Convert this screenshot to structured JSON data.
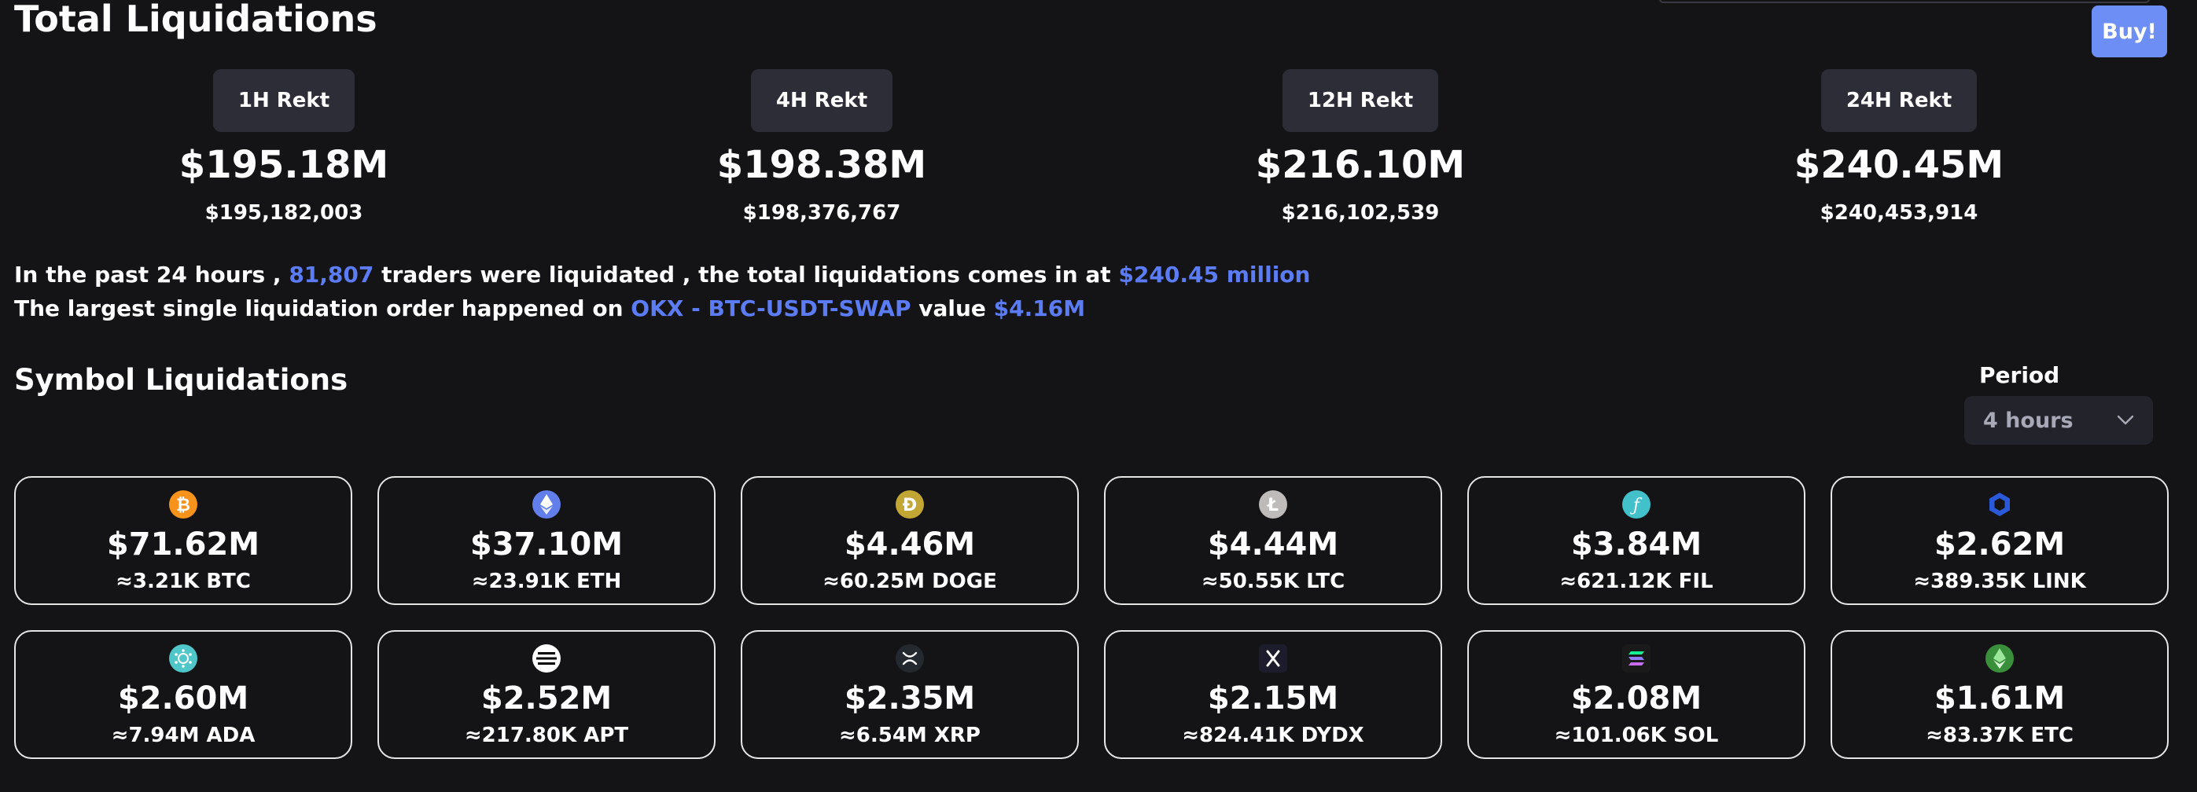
{
  "header": {
    "title": "Total Liquidations",
    "buy_label": "Buy!"
  },
  "rekt": [
    {
      "label": "1H Rekt",
      "short": "$195.18M",
      "full": "$195,182,003"
    },
    {
      "label": "4H Rekt",
      "short": "$198.38M",
      "full": "$198,376,767"
    },
    {
      "label": "12H Rekt",
      "short": "$216.10M",
      "full": "$216,102,539"
    },
    {
      "label": "24H Rekt",
      "short": "$240.45M",
      "full": "$240,453,914"
    }
  ],
  "summary": {
    "line1_a": "In the past 24 hours , ",
    "traders": "81,807",
    "line1_b": " traders were liquidated , the total liquidations comes in at ",
    "total": "$240.45 million",
    "line2_a": "The largest single liquidation order happened on ",
    "order": "OKX - BTC-USDT-SWAP",
    "line2_b": " value ",
    "order_value": "$4.16M"
  },
  "symbols": {
    "title": "Symbol Liquidations",
    "period_label": "Period",
    "period_value": "4 hours",
    "cards": [
      {
        "value": "$71.62M",
        "amount": "≈3.21K BTC",
        "icon": "bitcoin-icon",
        "color": "#f7931a"
      },
      {
        "value": "$37.10M",
        "amount": "≈23.91K ETH",
        "icon": "ethereum-icon",
        "color": "#627eea"
      },
      {
        "value": "$4.46M",
        "amount": "≈60.25M DOGE",
        "icon": "dogecoin-icon",
        "color": "#c2a633"
      },
      {
        "value": "$4.44M",
        "amount": "≈50.55K LTC",
        "icon": "litecoin-icon",
        "color": "#bfbbbb"
      },
      {
        "value": "$3.84M",
        "amount": "≈621.12K FIL",
        "icon": "filecoin-icon",
        "color": "#42c1ca"
      },
      {
        "value": "$2.62M",
        "amount": "≈389.35K LINK",
        "icon": "chainlink-icon",
        "color": "#2a5ada"
      },
      {
        "value": "$2.60M",
        "amount": "≈7.94M ADA",
        "icon": "cardano-icon",
        "color": "#4fc6c8"
      },
      {
        "value": "$2.52M",
        "amount": "≈217.80K APT",
        "icon": "aptos-icon",
        "color": "#ffffff"
      },
      {
        "value": "$2.35M",
        "amount": "≈6.54M XRP",
        "icon": "xrp-icon",
        "color": "#23292f"
      },
      {
        "value": "$2.15M",
        "amount": "≈824.41K DYDX",
        "icon": "dydx-icon",
        "color": "#1c1c2c"
      },
      {
        "value": "$2.08M",
        "amount": "≈101.06K SOL",
        "icon": "solana-icon",
        "color": "#1a1a1a"
      },
      {
        "value": "$1.61M",
        "amount": "≈83.37K ETC",
        "icon": "ethereum-classic-icon",
        "color": "#3ab83a"
      }
    ]
  }
}
